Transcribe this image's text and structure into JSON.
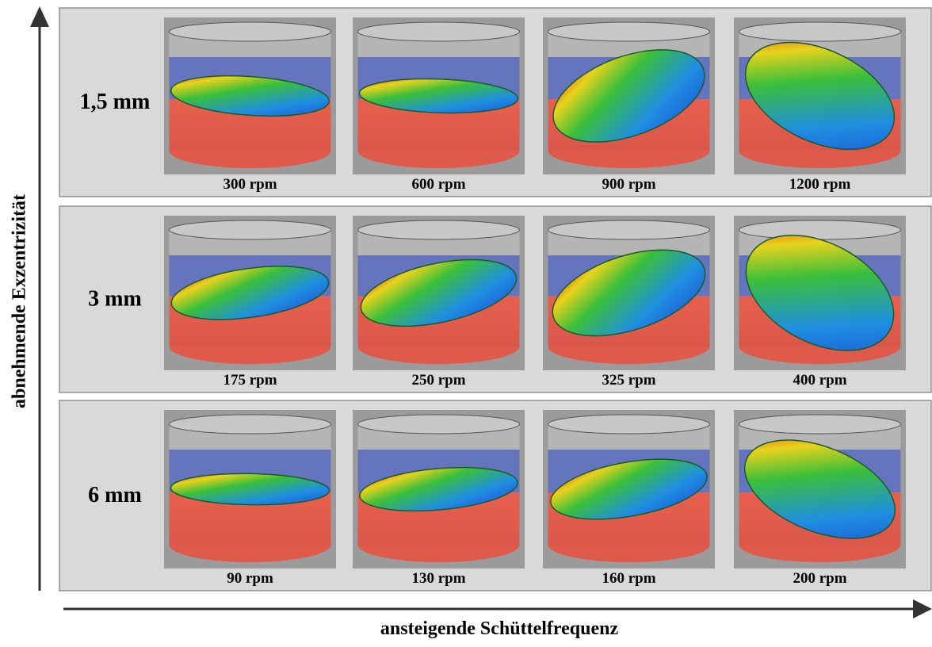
{
  "y_axis_label": "abnehmende Exzentrizität",
  "x_axis_label": "ansteigende Schüttelfrequenz",
  "rows": [
    {
      "label": "1,5 mm",
      "panels": [
        "300 rpm",
        "600 rpm",
        "900 rpm",
        "1200 rpm"
      ]
    },
    {
      "label": "3 mm",
      "panels": [
        "175 rpm",
        "250 rpm",
        "325 rpm",
        "400 rpm"
      ]
    },
    {
      "label": "6 mm",
      "panels": [
        "90 rpm",
        "130 rpm",
        "160 rpm",
        "200 rpm"
      ]
    }
  ]
}
